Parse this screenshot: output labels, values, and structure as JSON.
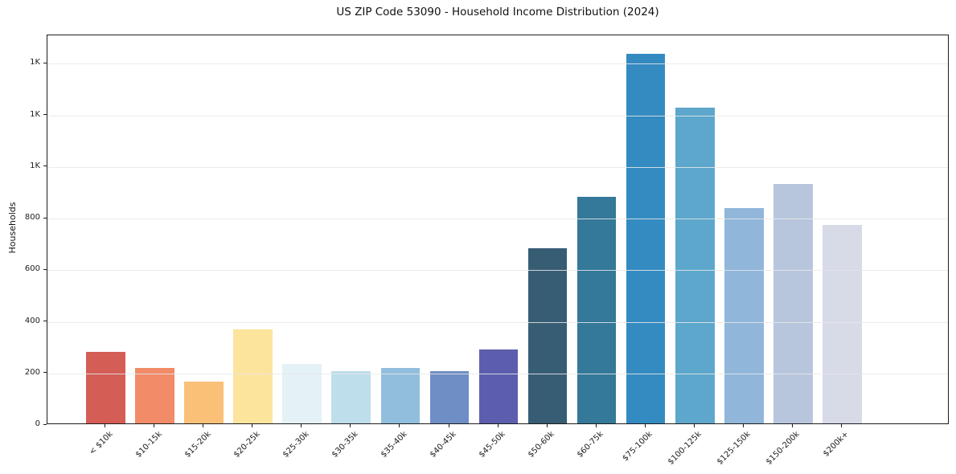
{
  "chart_data": {
    "type": "bar",
    "title": "US ZIP Code 53090 - Household Income Distribution (2024)",
    "xlabel": "",
    "ylabel": "Households",
    "categories": [
      "< $10k",
      "$10-15k",
      "$15-20k",
      "$20-25k",
      "$25-30k",
      "$30-35k",
      "$35-40k",
      "$40-45k",
      "$45-50k",
      "$50-60k",
      "$60-75k",
      "$75-100k",
      "$100-125k",
      "$125-150k",
      "$150-200k",
      "$200k+"
    ],
    "values": [
      278,
      216,
      162,
      364,
      229,
      203,
      216,
      204,
      286,
      680,
      877,
      1431,
      1224,
      836,
      928,
      768
    ],
    "bar_colors": [
      "#d45d56",
      "#f18b68",
      "#fbc078",
      "#fce49d",
      "#e4f1f6",
      "#bedeeb",
      "#92bedd",
      "#6e8ec5",
      "#5c5ead",
      "#375d74",
      "#34789a",
      "#348bc2",
      "#5da7cc",
      "#90b6da",
      "#b8c6dd",
      "#d7dae7"
    ],
    "ylim": [
      0,
      1510
    ],
    "ytick_values": [
      0,
      200,
      400,
      600,
      800,
      1000,
      1200,
      1400
    ],
    "ytick_labels": [
      "0",
      "200",
      "400",
      "600",
      "800",
      "1K",
      "1K",
      "1K"
    ],
    "xtick_rotation": 45,
    "grid": "horizontal-only, light gray, drawn above bars",
    "legend": "none",
    "background_color": "#ffffff",
    "gridline_color": "#e7e7ea",
    "spine_color": "#1c1c1c",
    "text_color": "#1c1c1c"
  }
}
